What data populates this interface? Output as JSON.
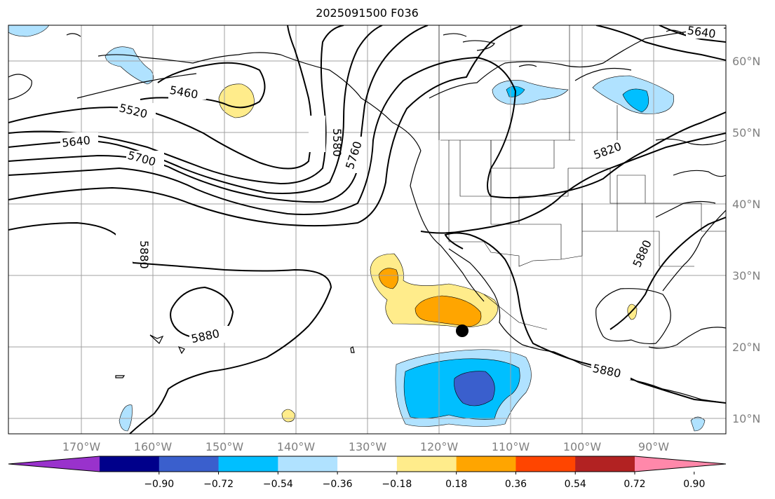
{
  "title": "2025091500 F036",
  "map": {
    "lon_labels": [
      "170°W",
      "160°W",
      "150°W",
      "140°W",
      "130°W",
      "120°W",
      "110°W",
      "100°W",
      "90°W"
    ],
    "lat_labels": [
      "60°N",
      "50°N",
      "40°N",
      "30°N",
      "20°N",
      "10°N"
    ],
    "contour_labels": [
      "5460",
      "5520",
      "5580",
      "5640",
      "5700",
      "5760",
      "5820",
      "5880",
      "5880",
      "5880",
      "5880",
      "5640"
    ],
    "storm_marker": "black-dot"
  },
  "colorbar": {
    "ticks": [
      "−0.90",
      "−0.72",
      "−0.54",
      "−0.36",
      "−0.18",
      "0.18",
      "0.36",
      "0.54",
      "0.72",
      "0.90"
    ],
    "colors": [
      "#9932cc",
      "#00008b",
      "#3a5fcd",
      "#00bfff",
      "#b0e2ff",
      "#ffffff",
      "#ffec8b",
      "#ffa500",
      "#ff4500",
      "#b22222",
      "#ff88aa"
    ]
  }
}
